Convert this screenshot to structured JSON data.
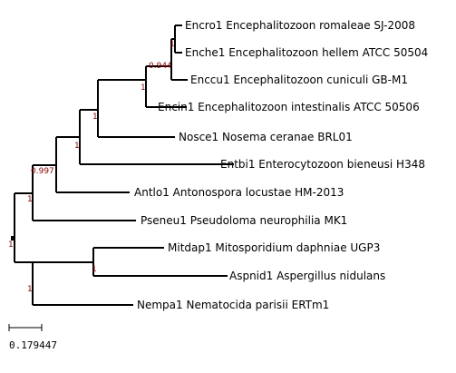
{
  "leaves": [
    {
      "id": "encro",
      "label": "Encro1 Encephalitozoon romaleae SJ-2008"
    },
    {
      "id": "enche",
      "label": "Enche1 Encephalitozoon hellem ATCC 50504"
    },
    {
      "id": "enccu",
      "label": "Enccu1 Encephalitozoon cuniculi GB-M1"
    },
    {
      "id": "encin",
      "label": "Encin1 Encephalitozoon intestinalis ATCC 50506"
    },
    {
      "id": "nosce",
      "label": "Nosce1 Nosema ceranae BRL01"
    },
    {
      "id": "entbi",
      "label": "Entbi1 Enterocytozoon bieneusi H348"
    },
    {
      "id": "antlo",
      "label": "Antlo1 Antonospora locustae HM-2013"
    },
    {
      "id": "pseneu",
      "label": "Pseneu1 Pseudoloma neurophilia MK1"
    },
    {
      "id": "mitdap",
      "label": "Mitdap1 Mitosporidium daphniae UGP3"
    },
    {
      "id": "aspnid",
      "label": "Aspnid1 Aspergillus nidulans"
    },
    {
      "id": "nempa",
      "label": "Nempa1 Nematocida parisii ERTm1"
    }
  ],
  "support_values": {
    "root": "1",
    "encro_enche": "1",
    "encro_enccu": "0.944",
    "encephalitozoon": "1",
    "with_nosce": "1",
    "with_entbi": "1",
    "with_antlo": "0.997",
    "with_pseneu": "1",
    "mitdap_aspnid": "1",
    "with_nempa": "1"
  },
  "scale_bar": {
    "label": "0.179447"
  },
  "colors": {
    "branch": "#000000",
    "support": "#8b0000"
  }
}
